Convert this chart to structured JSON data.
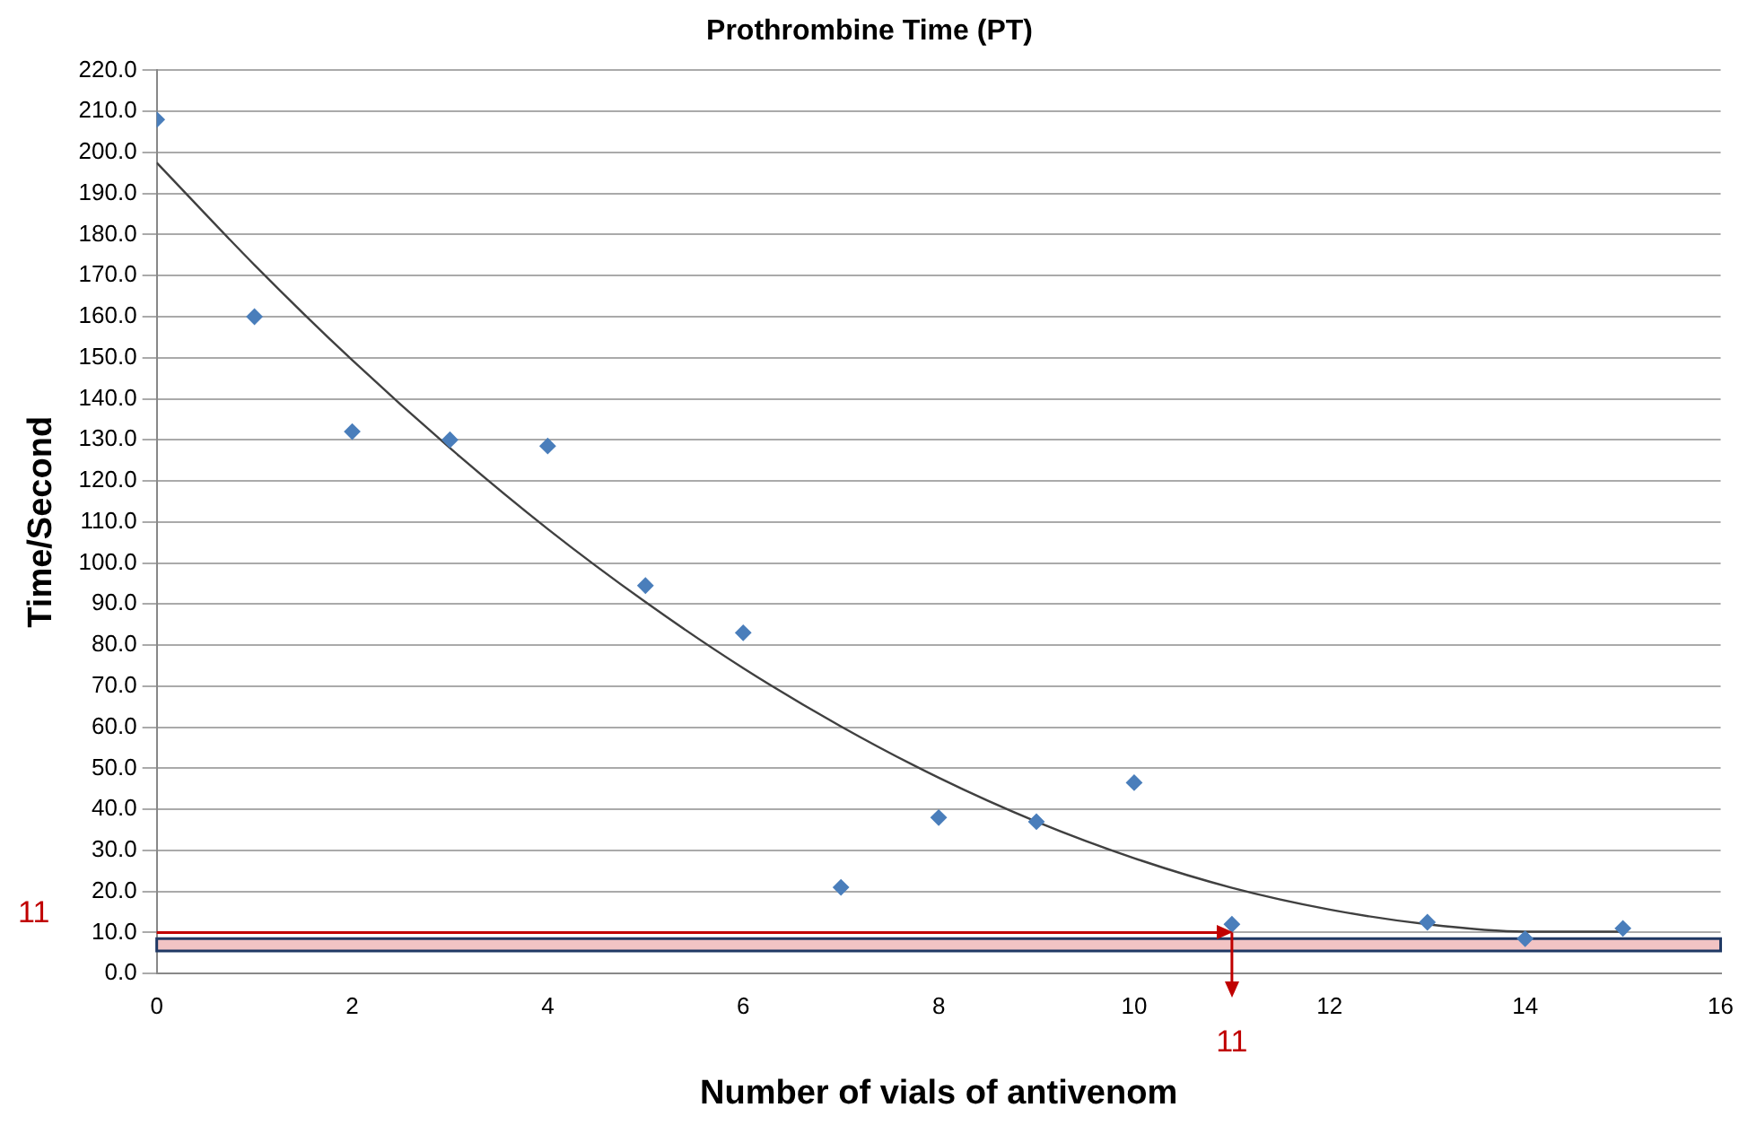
{
  "chart_data": {
    "type": "scatter",
    "title": "Prothrombine Time (PT)",
    "xlabel": "Number of vials of antivenom",
    "ylabel": "Time/Second",
    "x": [
      0,
      1,
      2,
      3,
      4,
      5,
      6,
      7,
      8,
      9,
      10,
      11,
      13,
      14,
      15
    ],
    "series": [
      {
        "color": "#4a7ebb",
        "marker": "diamond",
        "values": [
          208,
          160,
          132,
          130,
          128.5,
          94.5,
          83,
          21,
          38,
          37,
          46.5,
          12,
          12.5,
          8.5,
          11
        ]
      },
      {
        "type": "line",
        "color": "#404040",
        "marker": "none",
        "x": [
          0,
          1,
          2,
          3,
          4,
          5,
          6,
          7,
          8,
          9,
          10,
          11,
          12,
          13,
          14,
          15
        ],
        "values": [
          197.5,
          172.6,
          149.4,
          128,
          108.3,
          90.5,
          74.4,
          60.2,
          47.7,
          37,
          28.1,
          20.9,
          15.6,
          12,
          10.2,
          10.2
        ]
      }
    ],
    "xlim": [
      0,
      16
    ],
    "xticks": [
      0,
      2,
      4,
      6,
      8,
      10,
      12,
      14,
      16
    ],
    "ylim": [
      0,
      220
    ],
    "yticks": [
      {
        "value": 0,
        "label": "0.0"
      },
      {
        "value": 10,
        "label": "10.0"
      },
      {
        "value": 20,
        "label": "20.0"
      },
      {
        "value": 30,
        "label": "30.0"
      },
      {
        "value": 40,
        "label": "40.0"
      },
      {
        "value": 50,
        "label": "50.0"
      },
      {
        "value": 60,
        "label": "60.0"
      },
      {
        "value": 70,
        "label": "70.0"
      },
      {
        "value": 80,
        "label": "80.0"
      },
      {
        "value": 90,
        "label": "90.0"
      },
      {
        "value": 100,
        "label": "100.0"
      },
      {
        "value": 110,
        "label": "110.0"
      },
      {
        "value": 120,
        "label": "120.0"
      },
      {
        "value": 130,
        "label": "130.0"
      },
      {
        "value": 140,
        "label": "140.0"
      },
      {
        "value": 150,
        "label": "150.0"
      },
      {
        "value": 160,
        "label": "160.0"
      },
      {
        "value": 170,
        "label": "170.0"
      },
      {
        "value": 180,
        "label": "180.0"
      },
      {
        "value": 190,
        "label": "190.0"
      },
      {
        "value": 200,
        "label": "200.0"
      },
      {
        "value": 210,
        "label": "210.0"
      },
      {
        "value": 220,
        "label": "220.0"
      }
    ],
    "grid": "y",
    "legend": false,
    "bands": [
      {
        "axis": "y",
        "from": 5.5,
        "to": 8.5,
        "color": "#f2c4c4"
      }
    ],
    "annotations": [
      "11"
    ],
    "ref_lines": [
      {
        "axis": "y",
        "value": 10,
        "color": "#c00000"
      },
      {
        "axis": "x",
        "value": 11,
        "label": "11",
        "color": "#c00000"
      }
    ]
  }
}
